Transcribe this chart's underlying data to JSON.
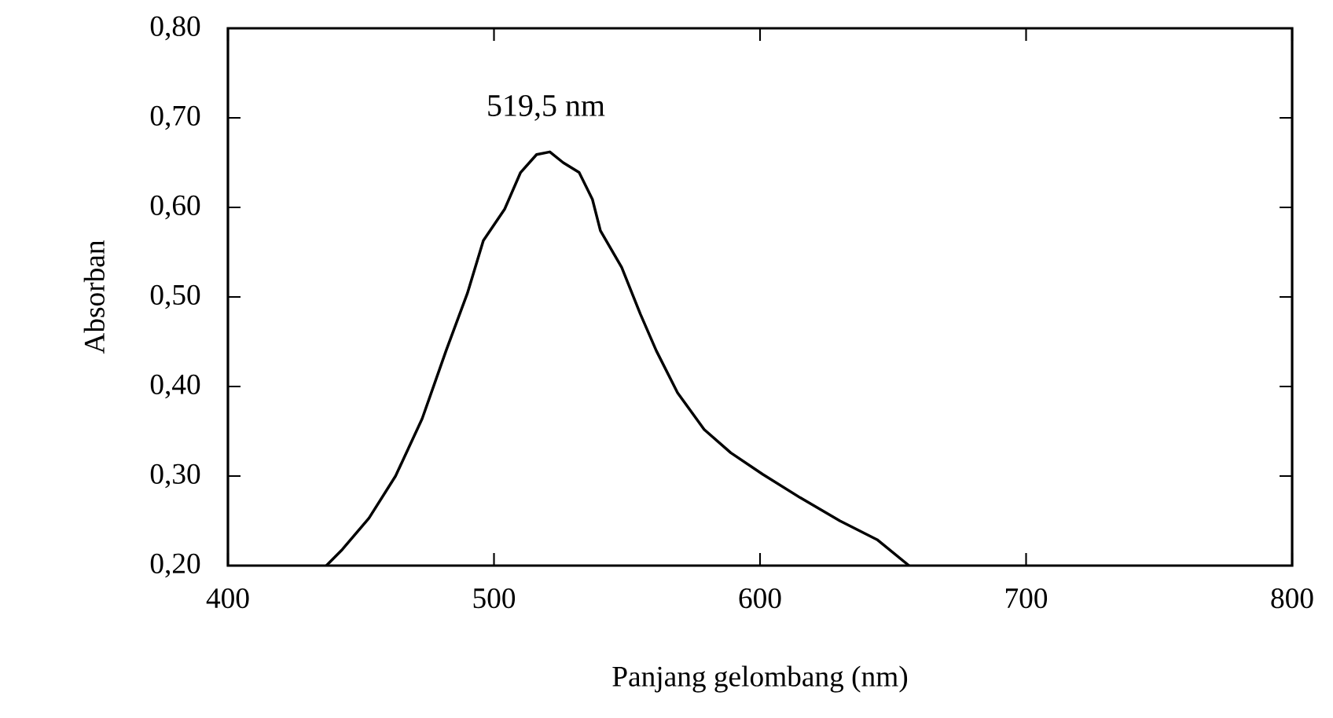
{
  "chart_data": {
    "type": "line",
    "xlabel": "Panjang gelombang (nm)",
    "ylabel": "Absorban",
    "x": [
      437,
      443,
      453,
      463,
      473,
      482,
      490,
      496,
      504,
      510,
      516,
      521,
      526,
      532,
      537,
      540,
      548,
      555,
      561,
      569,
      579,
      589,
      601,
      615,
      630,
      644,
      656
    ],
    "series": [
      {
        "color": "#000000",
        "values": [
          0.2,
          0.218,
          0.253,
          0.3,
          0.364,
          0.44,
          0.504,
          0.563,
          0.598,
          0.639,
          0.659,
          0.662,
          0.65,
          0.639,
          0.609,
          0.574,
          0.533,
          0.481,
          0.44,
          0.393,
          0.352,
          0.326,
          0.302,
          0.276,
          0.25,
          0.229,
          0.2
        ]
      }
    ],
    "xlim": [
      400,
      800
    ],
    "ylim": [
      0.2,
      0.8
    ],
    "xticks": [
      400,
      500,
      600,
      700,
      800
    ],
    "yticks": [
      {
        "value": 0.2,
        "label": "0,20"
      },
      {
        "value": 0.3,
        "label": "0,30"
      },
      {
        "value": 0.4,
        "label": "0,40"
      },
      {
        "value": 0.5,
        "label": "0,50"
      },
      {
        "value": 0.6,
        "label": "0,60"
      },
      {
        "value": 0.7,
        "label": "0,70"
      },
      {
        "value": 0.8,
        "label": "0,80"
      }
    ],
    "annotations": [
      {
        "text": "519,5 nm",
        "x": 519.5,
        "y": 0.662
      }
    ],
    "grid": false,
    "marker": "none",
    "line_style": "solid"
  }
}
